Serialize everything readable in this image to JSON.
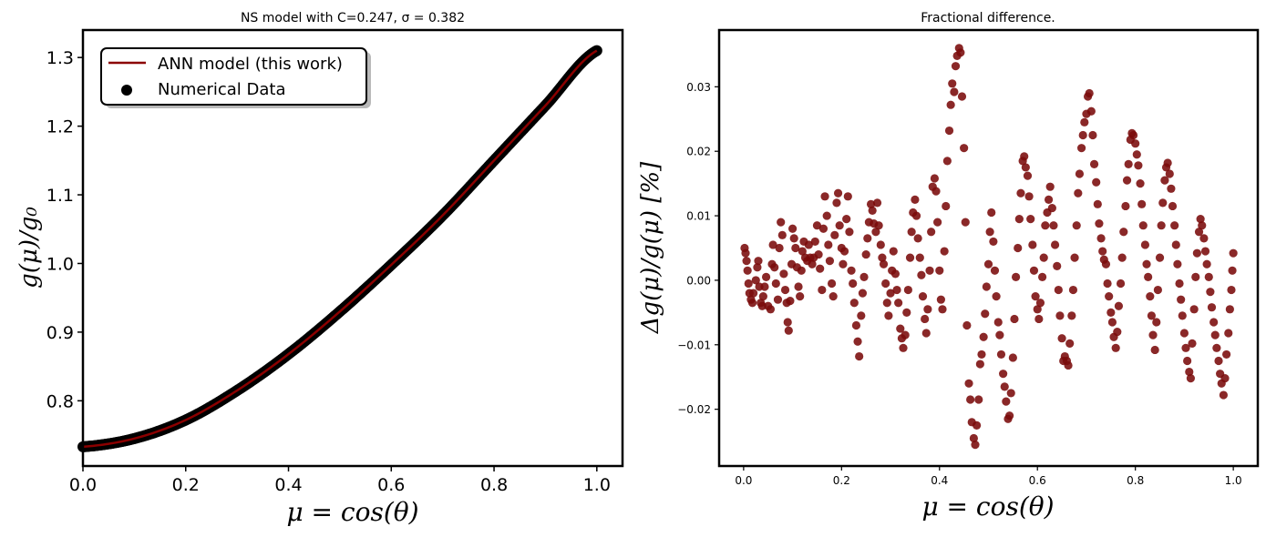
{
  "chart_data": [
    {
      "type": "line+scatter",
      "title": "NS model with C=0.247, σ = 0.382",
      "xlabel": "μ = cos(θ)",
      "ylabel": "g(μ)/g₀",
      "xlim": [
        0.0,
        1.05
      ],
      "ylim": [
        0.705,
        1.34
      ],
      "xticks": [
        "0.0",
        "0.2",
        "0.4",
        "0.6",
        "0.8",
        "1.0"
      ],
      "yticks": [
        "0.8",
        "0.9",
        "1.0",
        "1.1",
        "1.2",
        "1.3"
      ],
      "legend": {
        "placement": "top-left",
        "entries": [
          "ANN model (this work)",
          "Numerical Data"
        ]
      },
      "line_color": "#8b0000",
      "marker_color": "#000000",
      "series": [
        {
          "name": "ANN model (this work)",
          "x": [
            0.0,
            0.1,
            0.2,
            0.3,
            0.4,
            0.5,
            0.6,
            0.7,
            0.8,
            0.9,
            1.0
          ],
          "y": [
            0.733,
            0.745,
            0.772,
            0.815,
            0.868,
            0.93,
            0.998,
            1.07,
            1.15,
            1.23,
            1.31
          ]
        },
        {
          "name": "Numerical Data",
          "x": [
            0.0,
            0.1,
            0.2,
            0.3,
            0.4,
            0.5,
            0.6,
            0.7,
            0.8,
            0.9,
            1.0
          ],
          "y": [
            0.733,
            0.745,
            0.772,
            0.815,
            0.868,
            0.93,
            0.998,
            1.07,
            1.15,
            1.23,
            1.31
          ]
        }
      ]
    },
    {
      "type": "scatter",
      "title": "Fractional difference.",
      "xlabel": "μ = cos(θ)",
      "ylabel": "Δg(μ)/g(μ)  [%]",
      "xlim": [
        -0.05,
        1.05
      ],
      "ylim": [
        -0.0288,
        0.0388
      ],
      "xticks": [
        "0.0",
        "0.2",
        "0.4",
        "0.6",
        "0.8",
        "1.0"
      ],
      "yticks": [
        "−0.02",
        "−0.01",
        "0.00",
        "0.01",
        "0.02",
        "0.03"
      ],
      "marker_color": "#7a0a0a",
      "points": [
        [
          0.002,
          0.005
        ],
        [
          0.004,
          0.0042
        ],
        [
          0.006,
          0.003
        ],
        [
          0.008,
          0.0015
        ],
        [
          0.01,
          -0.0005
        ],
        [
          0.012,
          -0.002
        ],
        [
          0.015,
          -0.003
        ],
        [
          0.018,
          -0.0035
        ],
        [
          0.02,
          -0.002
        ],
        [
          0.025,
          0.0
        ],
        [
          0.028,
          0.002
        ],
        [
          0.03,
          0.003
        ],
        [
          0.032,
          -0.001
        ],
        [
          0.035,
          -0.0035
        ],
        [
          0.038,
          -0.004
        ],
        [
          0.04,
          -0.0025
        ],
        [
          0.043,
          -0.001
        ],
        [
          0.046,
          0.0005
        ],
        [
          0.05,
          -0.004
        ],
        [
          0.055,
          -0.0045
        ],
        [
          0.058,
          0.0025
        ],
        [
          0.06,
          0.0055
        ],
        [
          0.063,
          0.002
        ],
        [
          0.066,
          -0.0005
        ],
        [
          0.07,
          -0.003
        ],
        [
          0.073,
          0.005
        ],
        [
          0.076,
          0.009
        ],
        [
          0.079,
          0.007
        ],
        [
          0.082,
          0.001
        ],
        [
          0.085,
          -0.0015
        ],
        [
          0.088,
          -0.0035
        ],
        [
          0.09,
          -0.0065
        ],
        [
          0.092,
          -0.0078
        ],
        [
          0.095,
          -0.0032
        ],
        [
          0.098,
          0.0025
        ],
        [
          0.1,
          0.008
        ],
        [
          0.103,
          0.0065
        ],
        [
          0.106,
          0.005
        ],
        [
          0.109,
          0.002
        ],
        [
          0.112,
          -0.001
        ],
        [
          0.115,
          -0.0025
        ],
        [
          0.118,
          0.0015
        ],
        [
          0.12,
          0.0045
        ],
        [
          0.123,
          0.006
        ],
        [
          0.126,
          0.0035
        ],
        [
          0.13,
          0.003
        ],
        [
          0.133,
          0.0055
        ],
        [
          0.136,
          0.0035
        ],
        [
          0.14,
          0.0025
        ],
        [
          0.143,
          0.0035
        ],
        [
          0.146,
          0.006
        ],
        [
          0.15,
          0.0085
        ],
        [
          0.153,
          0.004
        ],
        [
          0.156,
          0.0018
        ],
        [
          0.16,
          -0.0015
        ],
        [
          0.163,
          0.008
        ],
        [
          0.166,
          0.013
        ],
        [
          0.17,
          0.01
        ],
        [
          0.173,
          0.0055
        ],
        [
          0.176,
          0.003
        ],
        [
          0.18,
          -0.0005
        ],
        [
          0.183,
          -0.0025
        ],
        [
          0.186,
          0.007
        ],
        [
          0.19,
          0.012
        ],
        [
          0.193,
          0.0135
        ],
        [
          0.196,
          0.0085
        ],
        [
          0.2,
          0.005
        ],
        [
          0.203,
          0.0025
        ],
        [
          0.206,
          0.0045
        ],
        [
          0.21,
          0.0095
        ],
        [
          0.213,
          0.013
        ],
        [
          0.216,
          0.0075
        ],
        [
          0.22,
          0.0015
        ],
        [
          0.223,
          -0.0005
        ],
        [
          0.226,
          -0.0035
        ],
        [
          0.23,
          -0.007
        ],
        [
          0.233,
          -0.0095
        ],
        [
          0.236,
          -0.0118
        ],
        [
          0.24,
          -0.0055
        ],
        [
          0.243,
          -0.002
        ],
        [
          0.246,
          0.0005
        ],
        [
          0.25,
          0.004
        ],
        [
          0.253,
          0.0065
        ],
        [
          0.256,
          0.009
        ],
        [
          0.26,
          0.0118
        ],
        [
          0.263,
          0.0108
        ],
        [
          0.266,
          0.0088
        ],
        [
          0.27,
          0.0075
        ],
        [
          0.273,
          0.012
        ],
        [
          0.276,
          0.0085
        ],
        [
          0.28,
          0.0055
        ],
        [
          0.283,
          0.0035
        ],
        [
          0.286,
          0.0025
        ],
        [
          0.29,
          -0.0005
        ],
        [
          0.293,
          -0.0035
        ],
        [
          0.296,
          -0.0055
        ],
        [
          0.3,
          -0.002
        ],
        [
          0.303,
          0.0015
        ],
        [
          0.306,
          0.0045
        ],
        [
          0.31,
          0.001
        ],
        [
          0.313,
          -0.0015
        ],
        [
          0.316,
          -0.0035
        ],
        [
          0.32,
          -0.0075
        ],
        [
          0.323,
          -0.009
        ],
        [
          0.326,
          -0.0105
        ],
        [
          0.33,
          -0.0085
        ],
        [
          0.333,
          -0.005
        ],
        [
          0.336,
          -0.0015
        ],
        [
          0.34,
          0.0035
        ],
        [
          0.343,
          0.0075
        ],
        [
          0.346,
          0.0105
        ],
        [
          0.35,
          0.0125
        ],
        [
          0.353,
          0.01
        ],
        [
          0.356,
          0.0065
        ],
        [
          0.36,
          0.0035
        ],
        [
          0.363,
          0.0008
        ],
        [
          0.366,
          -0.0025
        ],
        [
          0.37,
          -0.006
        ],
        [
          0.373,
          -0.0082
        ],
        [
          0.376,
          -0.0045
        ],
        [
          0.38,
          0.0015
        ],
        [
          0.383,
          0.0075
        ],
        [
          0.386,
          0.0145
        ],
        [
          0.39,
          0.0158
        ],
        [
          0.393,
          0.0138
        ],
        [
          0.396,
          0.009
        ],
        [
          0.4,
          0.0015
        ],
        [
          0.403,
          -0.003
        ],
        [
          0.406,
          -0.0045
        ],
        [
          0.41,
          0.0045
        ],
        [
          0.413,
          0.0115
        ],
        [
          0.416,
          0.0185
        ],
        [
          0.42,
          0.0232
        ],
        [
          0.423,
          0.0272
        ],
        [
          0.426,
          0.0305
        ],
        [
          0.43,
          0.0292
        ],
        [
          0.433,
          0.0332
        ],
        [
          0.436,
          0.0348
        ],
        [
          0.44,
          0.036
        ],
        [
          0.443,
          0.0353
        ],
        [
          0.446,
          0.0285
        ],
        [
          0.45,
          0.0205
        ],
        [
          0.453,
          0.009
        ],
        [
          0.456,
          -0.007
        ],
        [
          0.46,
          -0.016
        ],
        [
          0.463,
          -0.0185
        ],
        [
          0.466,
          -0.022
        ],
        [
          0.47,
          -0.0245
        ],
        [
          0.473,
          -0.0255
        ],
        [
          0.476,
          -0.0225
        ],
        [
          0.48,
          -0.0185
        ],
        [
          0.483,
          -0.013
        ],
        [
          0.486,
          -0.0115
        ],
        [
          0.49,
          -0.0088
        ],
        [
          0.493,
          -0.0052
        ],
        [
          0.496,
          -0.001
        ],
        [
          0.5,
          0.0025
        ],
        [
          0.503,
          0.0075
        ],
        [
          0.506,
          0.0105
        ],
        [
          0.51,
          0.006
        ],
        [
          0.513,
          0.0015
        ],
        [
          0.516,
          -0.0025
        ],
        [
          0.52,
          -0.0065
        ],
        [
          0.523,
          -0.0085
        ],
        [
          0.526,
          -0.0115
        ],
        [
          0.53,
          -0.0145
        ],
        [
          0.533,
          -0.0165
        ],
        [
          0.536,
          -0.0188
        ],
        [
          0.54,
          -0.0215
        ],
        [
          0.543,
          -0.021
        ],
        [
          0.546,
          -0.0175
        ],
        [
          0.55,
          -0.012
        ],
        [
          0.553,
          -0.006
        ],
        [
          0.556,
          0.0005
        ],
        [
          0.56,
          0.005
        ],
        [
          0.563,
          0.0095
        ],
        [
          0.566,
          0.0135
        ],
        [
          0.57,
          0.0185
        ],
        [
          0.573,
          0.0192
        ],
        [
          0.576,
          0.0175
        ],
        [
          0.58,
          0.0162
        ],
        [
          0.583,
          0.013
        ],
        [
          0.586,
          0.0095
        ],
        [
          0.59,
          0.0055
        ],
        [
          0.593,
          0.0015
        ],
        [
          0.596,
          -0.0025
        ],
        [
          0.6,
          -0.0045
        ],
        [
          0.603,
          -0.006
        ],
        [
          0.606,
          -0.0035
        ],
        [
          0.61,
          0.0005
        ],
        [
          0.613,
          0.0035
        ],
        [
          0.616,
          0.0085
        ],
        [
          0.62,
          0.0105
        ],
        [
          0.623,
          0.0125
        ],
        [
          0.626,
          0.0145
        ],
        [
          0.63,
          0.0112
        ],
        [
          0.633,
          0.0085
        ],
        [
          0.636,
          0.0055
        ],
        [
          0.64,
          0.0022
        ],
        [
          0.643,
          -0.0015
        ],
        [
          0.646,
          -0.0055
        ],
        [
          0.65,
          -0.009
        ],
        [
          0.653,
          -0.0125
        ],
        [
          0.656,
          -0.0118
        ],
        [
          0.66,
          -0.0125
        ],
        [
          0.663,
          -0.0132
        ],
        [
          0.666,
          -0.0098
        ],
        [
          0.67,
          -0.0055
        ],
        [
          0.673,
          -0.0015
        ],
        [
          0.676,
          0.0035
        ],
        [
          0.68,
          0.0085
        ],
        [
          0.683,
          0.0135
        ],
        [
          0.686,
          0.0165
        ],
        [
          0.69,
          0.0205
        ],
        [
          0.693,
          0.0225
        ],
        [
          0.696,
          0.0245
        ],
        [
          0.7,
          0.0258
        ],
        [
          0.703,
          0.0285
        ],
        [
          0.706,
          0.029
        ],
        [
          0.71,
          0.0262
        ],
        [
          0.713,
          0.0225
        ],
        [
          0.716,
          0.018
        ],
        [
          0.72,
          0.0152
        ],
        [
          0.723,
          0.0118
        ],
        [
          0.726,
          0.0088
        ],
        [
          0.73,
          0.0065
        ],
        [
          0.733,
          0.0045
        ],
        [
          0.736,
          0.0032
        ],
        [
          0.74,
          0.0025
        ],
        [
          0.743,
          -0.0005
        ],
        [
          0.746,
          -0.0025
        ],
        [
          0.75,
          -0.005
        ],
        [
          0.753,
          -0.0065
        ],
        [
          0.756,
          -0.0088
        ],
        [
          0.76,
          -0.0105
        ],
        [
          0.763,
          -0.008
        ],
        [
          0.766,
          -0.004
        ],
        [
          0.77,
          -0.0005
        ],
        [
          0.773,
          0.0035
        ],
        [
          0.776,
          0.0075
        ],
        [
          0.78,
          0.0115
        ],
        [
          0.783,
          0.0155
        ],
        [
          0.786,
          0.018
        ],
        [
          0.79,
          0.0218
        ],
        [
          0.793,
          0.0228
        ],
        [
          0.796,
          0.0225
        ],
        [
          0.8,
          0.0212
        ],
        [
          0.803,
          0.0195
        ],
        [
          0.806,
          0.0178
        ],
        [
          0.81,
          0.015
        ],
        [
          0.813,
          0.0118
        ],
        [
          0.816,
          0.0085
        ],
        [
          0.82,
          0.0055
        ],
        [
          0.823,
          0.0025
        ],
        [
          0.826,
          0.0005
        ],
        [
          0.83,
          -0.0025
        ],
        [
          0.833,
          -0.0055
        ],
        [
          0.836,
          -0.0085
        ],
        [
          0.84,
          -0.0108
        ],
        [
          0.843,
          -0.0065
        ],
        [
          0.846,
          -0.0015
        ],
        [
          0.85,
          0.0035
        ],
        [
          0.853,
          0.0085
        ],
        [
          0.856,
          0.012
        ],
        [
          0.86,
          0.0155
        ],
        [
          0.863,
          0.0175
        ],
        [
          0.866,
          0.0182
        ],
        [
          0.87,
          0.0165
        ],
        [
          0.873,
          0.0142
        ],
        [
          0.876,
          0.0115
        ],
        [
          0.88,
          0.0085
        ],
        [
          0.883,
          0.0055
        ],
        [
          0.886,
          0.0025
        ],
        [
          0.89,
          -0.0005
        ],
        [
          0.893,
          -0.003
        ],
        [
          0.896,
          -0.0055
        ],
        [
          0.9,
          -0.0082
        ],
        [
          0.903,
          -0.0105
        ],
        [
          0.906,
          -0.0125
        ],
        [
          0.91,
          -0.0142
        ],
        [
          0.913,
          -0.0152
        ],
        [
          0.916,
          -0.0098
        ],
        [
          0.92,
          -0.0045
        ],
        [
          0.923,
          0.0005
        ],
        [
          0.926,
          0.0042
        ],
        [
          0.93,
          0.0075
        ],
        [
          0.933,
          0.0095
        ],
        [
          0.936,
          0.0085
        ],
        [
          0.94,
          0.0065
        ],
        [
          0.943,
          0.0045
        ],
        [
          0.946,
          0.0025
        ],
        [
          0.95,
          0.0005
        ],
        [
          0.953,
          -0.0018
        ],
        [
          0.956,
          -0.0042
        ],
        [
          0.96,
          -0.0065
        ],
        [
          0.963,
          -0.0085
        ],
        [
          0.966,
          -0.0105
        ],
        [
          0.97,
          -0.0125
        ],
        [
          0.973,
          -0.0145
        ],
        [
          0.976,
          -0.016
        ],
        [
          0.98,
          -0.0178
        ],
        [
          0.983,
          -0.0152
        ],
        [
          0.986,
          -0.0115
        ],
        [
          0.99,
          -0.0082
        ],
        [
          0.993,
          -0.0045
        ],
        [
          0.996,
          -0.0015
        ],
        [
          0.998,
          0.0015
        ],
        [
          1.0,
          0.0042
        ]
      ]
    }
  ]
}
